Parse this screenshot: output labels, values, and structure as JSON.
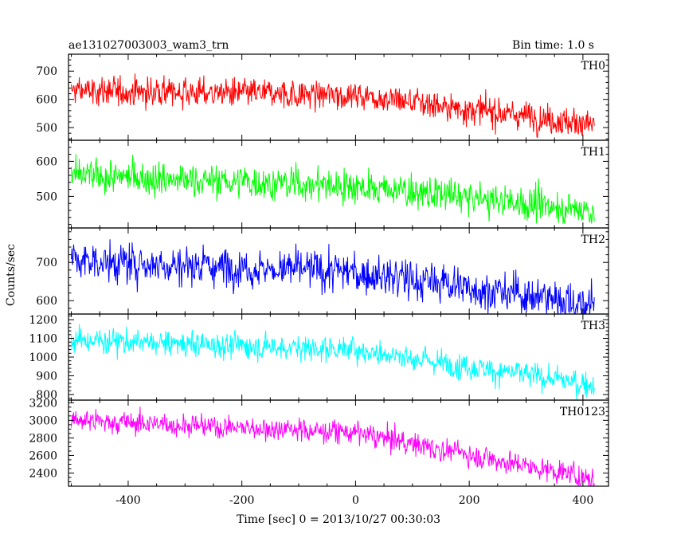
{
  "header": {
    "left_title": "ae131027003003_wam3_trn",
    "right_title": "Bin time: 1.0 s"
  },
  "chart_data": {
    "type": "line",
    "title": "ae131027003003_wam3_trn",
    "subtitle": "Bin time: 1.0 s",
    "xlabel": "Time [sec] 0 = 2013/10/27 00:30:03",
    "ylabel": "Counts/sec",
    "xlim": [
      -505,
      445
    ],
    "xticks": [
      -400,
      -200,
      0,
      200,
      400
    ],
    "x_range": [
      -500,
      420
    ],
    "grid": false,
    "legend": "none",
    "panels": [
      {
        "name": "TH0",
        "color": "#ff0000",
        "ylim": [
          455,
          760
        ],
        "yticks": [
          500,
          600,
          700
        ],
        "trend_start": 630,
        "trend_mid": 615,
        "trend_end": 510,
        "noise_amplitude": 30
      },
      {
        "name": "TH1",
        "color": "#00ff00",
        "ylim": [
          410,
          660
        ],
        "yticks": [
          500,
          600
        ],
        "trend_start": 560,
        "trend_mid": 530,
        "trend_end": 460,
        "noise_amplitude": 28
      },
      {
        "name": "TH2",
        "color": "#0000ff",
        "ylim": [
          565,
          790
        ],
        "yticks": [
          600,
          700
        ],
        "trend_start": 705,
        "trend_mid": 675,
        "trend_end": 590,
        "noise_amplitude": 30
      },
      {
        "name": "TH3",
        "color": "#00ffff",
        "ylim": [
          770,
          1230
        ],
        "yticks": [
          800,
          900,
          1000,
          1100,
          1200
        ],
        "trend_start": 1090,
        "trend_mid": 1040,
        "trend_end": 850,
        "noise_amplitude": 40
      },
      {
        "name": "TH0123",
        "color": "#ff00ff",
        "ylim": [
          2250,
          3230
        ],
        "yticks": [
          2400,
          2600,
          2800,
          3000,
          3200
        ],
        "trend_start": 3000,
        "trend_mid": 2860,
        "trend_end": 2330,
        "noise_amplitude": 75
      }
    ]
  }
}
